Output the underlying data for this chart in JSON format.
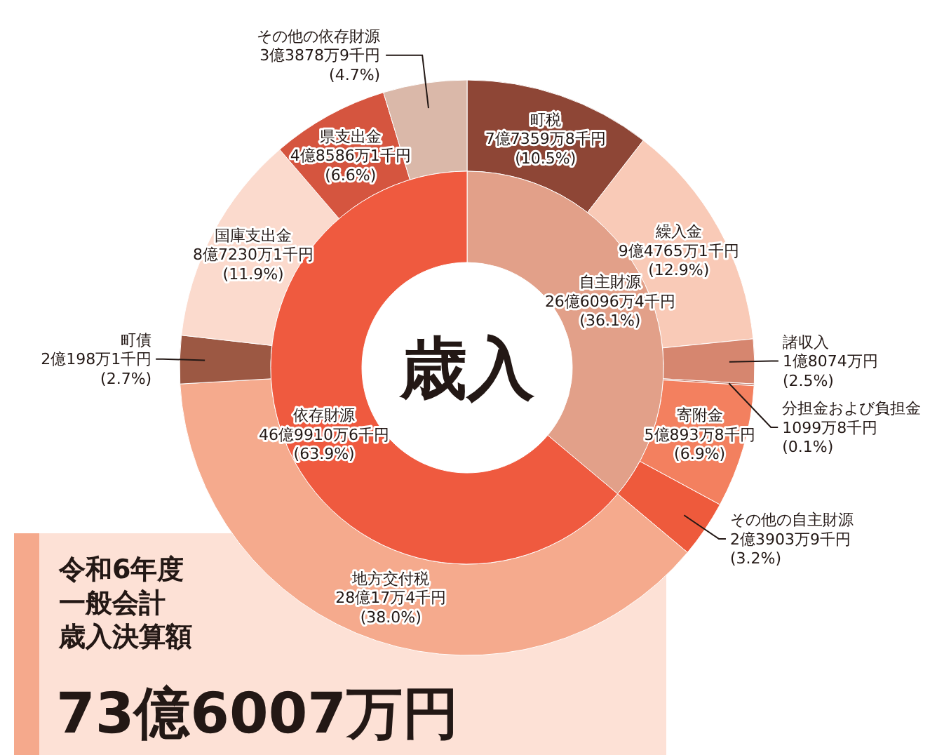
{
  "chart_data": [
    {
      "type": "donut",
      "title": "歳入",
      "categories": [
        "自主財源",
        "依存財源"
      ],
      "values": [
        36.1,
        63.9
      ],
      "colors": [
        "#e2a089",
        "#ef5a3f"
      ],
      "value_labels": [
        "26億6096万4千円\n(36.1%)",
        "46億9910万6千円\n(63.9%)"
      ]
    },
    {
      "type": "donut",
      "categories": [
        "町税",
        "繰入金",
        "諸収入",
        "分担金および負担金",
        "寄附金",
        "その他の自主財源",
        "地方交付税",
        "町債",
        "国庫支出金",
        "県支出金",
        "その他の依存財源"
      ],
      "values": [
        10.5,
        12.9,
        2.5,
        0.1,
        6.9,
        3.2,
        38.0,
        2.7,
        11.9,
        6.6,
        4.7
      ],
      "colors": [
        "#8e4636",
        "#f9cab7",
        "#d6866f",
        "#c0705c",
        "#f3805f",
        "#ee5a3c",
        "#f5aa8d",
        "#9c5843",
        "#fbdacd",
        "#d5553f",
        "#dab8a9"
      ],
      "value_labels": [
        "7億7359万8千円\n(10.5%)",
        "9億4765万1千円\n(12.9%)",
        "1億8074万円\n(2.5%)",
        "1099万8千円\n(0.1%)",
        "5億893万8千円\n(6.9%)",
        "2億3903万9千円\n(3.2%)",
        "28億17万4千円\n(38.0%)",
        "2億198万1千円\n(2.7%)",
        "8億7230万1千円\n(11.9%)",
        "4億8586万1千円\n(6.6%)",
        "3億3878万9千円\n(4.7%)"
      ],
      "annotations": [
        "令和6年度",
        "一般会計",
        "歳入決算額",
        "73億6007万円"
      ]
    }
  ]
}
